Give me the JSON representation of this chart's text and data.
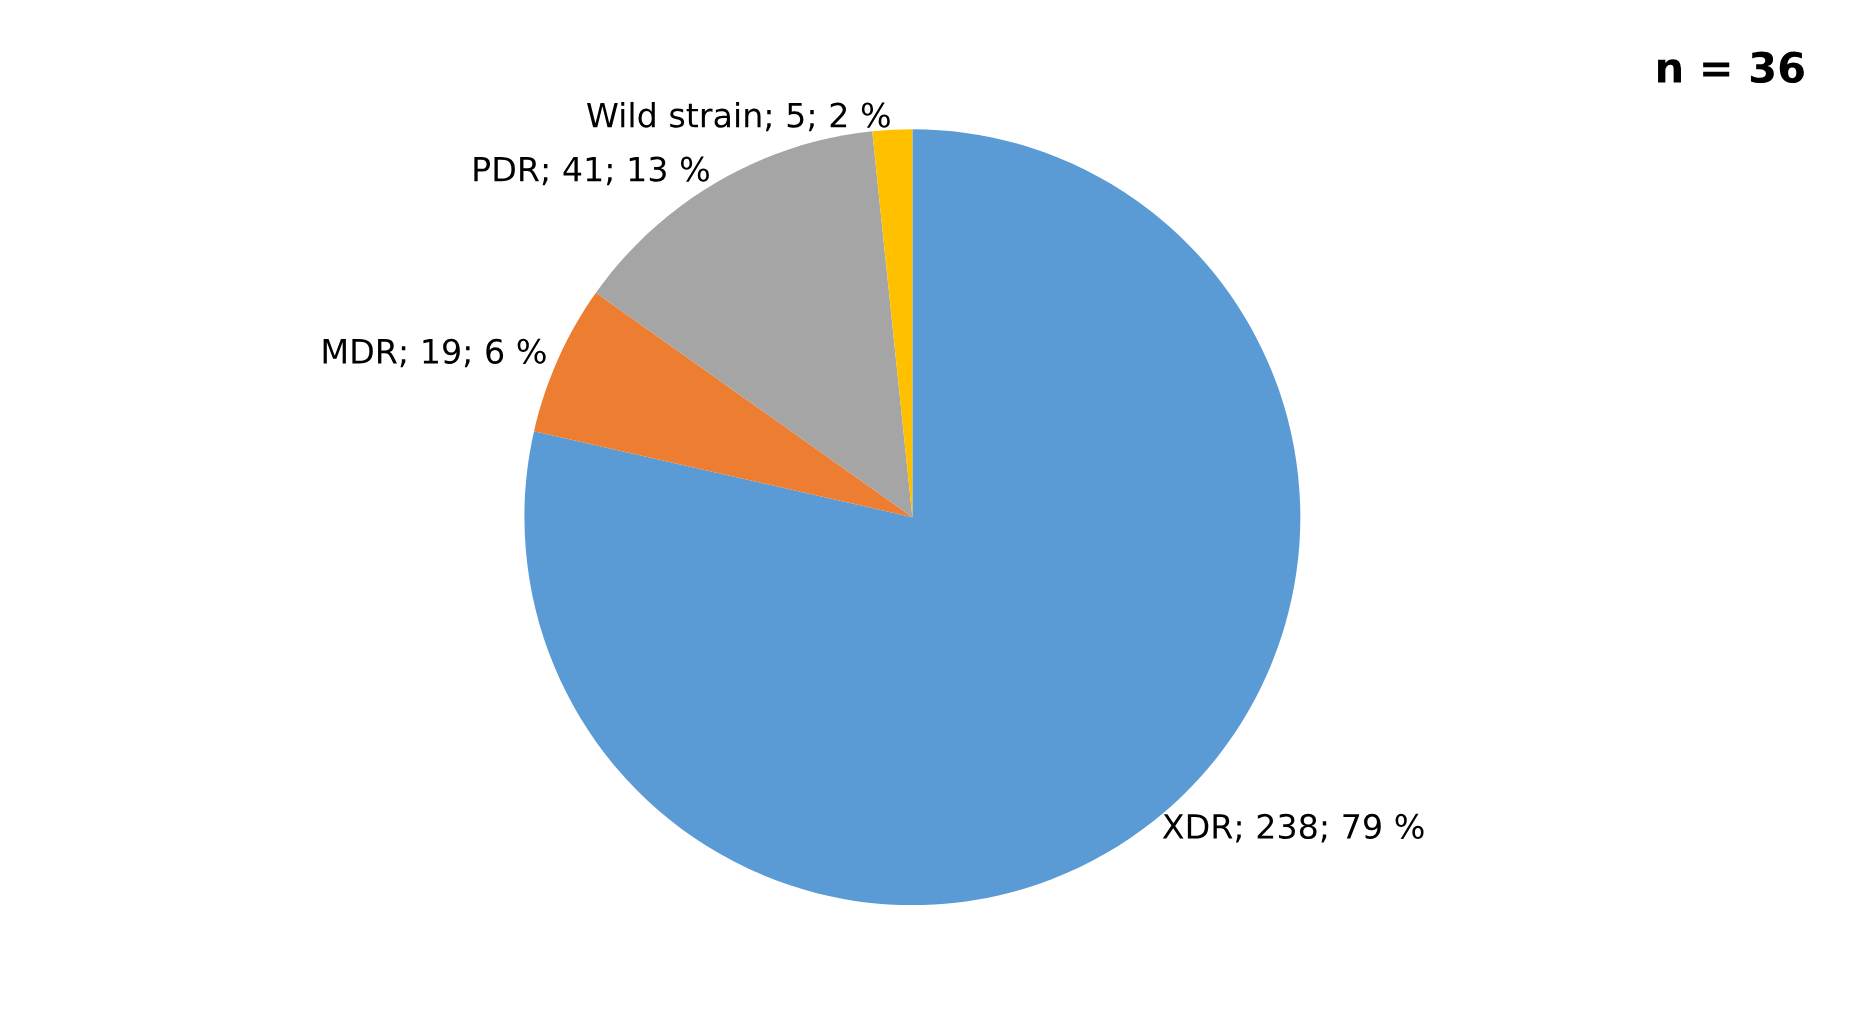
{
  "chart_data": {
    "type": "pie",
    "categories": [
      "XDR",
      "MDR",
      "PDR",
      "Wild strain"
    ],
    "values": [
      238,
      19,
      41,
      5
    ],
    "value_labels": [
      "; 238; 79 %",
      "; 19; 6 %",
      "; 41; 13 %",
      "; 5; 2 %"
    ],
    "colors": [
      "#5b9bd5",
      "#ed7d31",
      "#a5a5a5",
      "#ffc000"
    ],
    "annotations": [
      "n = 36"
    ],
    "legend": false
  }
}
